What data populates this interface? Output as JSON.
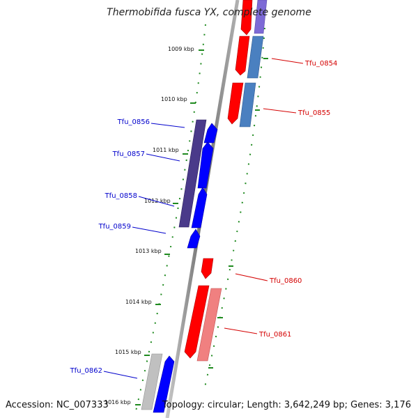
{
  "title": "Thermobifida fusca YX, complete genome",
  "footer": {
    "accession": "Accession: NC_007333",
    "info": "Topology: circular; Length: 3,642,249 bp; Genes: 3,176"
  },
  "colors": {
    "backbone": "#8a8a8a",
    "tick_green": "#1f8a1f",
    "forward_red": "#ff0000",
    "reverse_blue": "#0000ff",
    "label_red": "#d40000",
    "label_blue": "#0000cc",
    "rna_purple": "#4a3a8a",
    "pseudo_pink": "#f08080",
    "steel_blue": "#4a80c0",
    "gray_gene": "#b8b8b8"
  },
  "kbp_ticks": [
    {
      "label": "1009 kbp"
    },
    {
      "label": "1010 kbp"
    },
    {
      "label": "1011 kbp"
    },
    {
      "label": "1012 kbp"
    },
    {
      "label": "1013 kbp"
    },
    {
      "label": "1014 kbp"
    },
    {
      "label": "1015 kbp"
    },
    {
      "label": "1016 kbp"
    }
  ],
  "genes": [
    {
      "name": "Tfu_0854",
      "strand": "forward"
    },
    {
      "name": "Tfu_0855",
      "strand": "forward"
    },
    {
      "name": "Tfu_0856",
      "strand": "reverse"
    },
    {
      "name": "Tfu_0857",
      "strand": "reverse"
    },
    {
      "name": "Tfu_0858",
      "strand": "reverse"
    },
    {
      "name": "Tfu_0859",
      "strand": "reverse"
    },
    {
      "name": "Tfu_0860",
      "strand": "forward"
    },
    {
      "name": "Tfu_0861",
      "strand": "forward"
    },
    {
      "name": "Tfu_0862",
      "strand": "reverse"
    }
  ]
}
